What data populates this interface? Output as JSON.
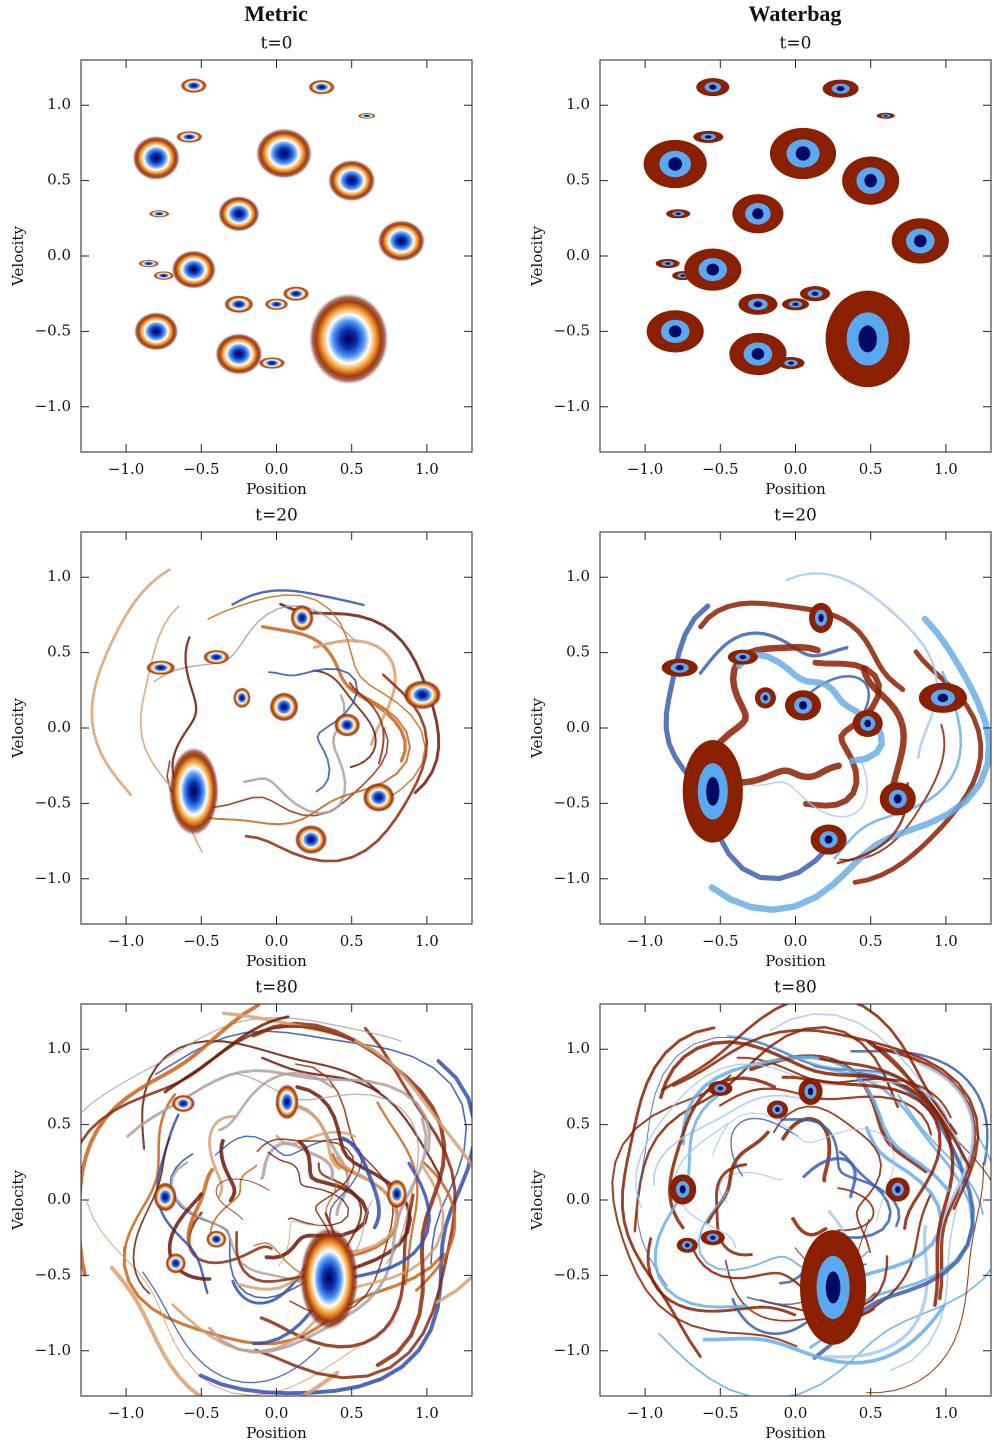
{
  "columns": [
    "Metric",
    "Waterbag"
  ],
  "chart_data": [
    {
      "type": "phase-space",
      "title": "t=0",
      "xlabel": "Position",
      "ylabel": "Velocity",
      "xlim": [
        -1.3,
        1.3
      ],
      "ylim": [
        -1.3,
        1.3
      ],
      "xticks": [
        {
          "value": -1,
          "label": "−1.0"
        },
        {
          "value": -0.5,
          "label": "−0.5"
        },
        {
          "value": 0,
          "label": "0.0"
        },
        0.5,
        {
          "value": 1,
          "label": "1.0"
        }
      ],
      "yticks": [
        {
          "value": -1,
          "label": "−1.0"
        },
        {
          "value": -0.5,
          "label": "−0.5"
        },
        {
          "value": 0,
          "label": "0.0"
        },
        0.5,
        {
          "value": 1,
          "label": "1.0"
        }
      ],
      "x": [
        -0.55,
        0.3,
        0.6,
        -0.58,
        -0.8,
        0.05,
        0.5,
        -0.25,
        -0.78,
        0.83,
        -0.85,
        -0.75,
        -0.55,
        -0.25,
        0.0,
        0.13,
        -0.8,
        -0.25,
        -0.03,
        0.48
      ],
      "values": [
        1.13,
        1.12,
        0.93,
        0.79,
        0.65,
        0.68,
        0.5,
        0.28,
        0.28,
        0.1,
        -0.05,
        -0.13,
        -0.09,
        -0.32,
        -0.32,
        -0.25,
        -0.5,
        -0.65,
        -0.71,
        -0.55
      ],
      "rx": [
        0.09,
        0.09,
        0.06,
        0.09,
        0.16,
        0.19,
        0.16,
        0.14,
        0.07,
        0.16,
        0.07,
        0.07,
        0.15,
        0.1,
        0.08,
        0.09,
        0.15,
        0.16,
        0.09,
        0.27
      ],
      "ry": [
        0.05,
        0.05,
        0.02,
        0.04,
        0.15,
        0.17,
        0.14,
        0.12,
        0.025,
        0.14,
        0.025,
        0.03,
        0.13,
        0.06,
        0.04,
        0.05,
        0.13,
        0.14,
        0.04,
        0.31
      ]
    },
    {
      "type": "phase-space",
      "title": "t=0",
      "xlabel": "Position",
      "ylabel": "Velocity",
      "xlim": [
        -1.3,
        1.3
      ],
      "ylim": [
        -1.3,
        1.3
      ],
      "xticks": [
        {
          "value": -1,
          "label": "−1.0"
        },
        {
          "value": -0.5,
          "label": "−0.5"
        },
        {
          "value": 0,
          "label": "0.0"
        },
        0.5,
        {
          "value": 1,
          "label": "1.0"
        }
      ],
      "yticks": [
        {
          "value": -1,
          "label": "−1.0"
        },
        {
          "value": -0.5,
          "label": "−0.5"
        },
        {
          "value": 0,
          "label": "0.0"
        },
        0.5,
        {
          "value": 1,
          "label": "1.0"
        }
      ],
      "x": [
        -0.55,
        0.3,
        0.6,
        -0.58,
        -0.8,
        0.05,
        0.5,
        -0.25,
        -0.78,
        0.83,
        -0.85,
        -0.75,
        -0.55,
        -0.25,
        0.0,
        0.13,
        -0.8,
        -0.25,
        -0.03,
        0.48
      ],
      "values": [
        1.12,
        1.11,
        0.93,
        0.79,
        0.61,
        0.68,
        0.5,
        0.28,
        0.28,
        0.1,
        -0.05,
        -0.13,
        -0.09,
        -0.32,
        -0.32,
        -0.25,
        -0.5,
        -0.65,
        -0.71,
        -0.55
      ],
      "rx": [
        0.11,
        0.12,
        0.06,
        0.1,
        0.21,
        0.22,
        0.19,
        0.17,
        0.08,
        0.19,
        0.08,
        0.07,
        0.19,
        0.13,
        0.09,
        0.1,
        0.19,
        0.19,
        0.09,
        0.28
      ],
      "ry": [
        0.06,
        0.06,
        0.02,
        0.04,
        0.16,
        0.17,
        0.16,
        0.13,
        0.03,
        0.15,
        0.03,
        0.03,
        0.14,
        0.07,
        0.04,
        0.05,
        0.14,
        0.14,
        0.04,
        0.32
      ]
    },
    {
      "type": "phase-space",
      "title": "t=20",
      "xlabel": "Position",
      "ylabel": "Velocity",
      "xlim": [
        -1.3,
        1.3
      ],
      "ylim": [
        -1.3,
        1.3
      ],
      "xticks": [
        {
          "value": -1,
          "label": "−1.0"
        },
        {
          "value": -0.5,
          "label": "−0.5"
        },
        {
          "value": 0,
          "label": "0.0"
        },
        0.5,
        {
          "value": 1,
          "label": "1.0"
        }
      ],
      "yticks": [
        {
          "value": -1,
          "label": "−1.0"
        },
        {
          "value": -0.5,
          "label": "−0.5"
        },
        {
          "value": 0,
          "label": "0.0"
        },
        0.5,
        {
          "value": 1,
          "label": "1.0"
        }
      ],
      "x": [
        -0.77,
        -0.4,
        0.17,
        -0.23,
        0.05,
        0.47,
        0.97,
        -0.55,
        0.68,
        0.23
      ],
      "values": [
        0.4,
        0.47,
        0.73,
        0.2,
        0.14,
        0.02,
        0.22,
        -0.42,
        -0.46,
        -0.74
      ],
      "rx": [
        0.1,
        0.09,
        0.08,
        0.06,
        0.1,
        0.09,
        0.13,
        0.17,
        0.11,
        0.11
      ],
      "ry": [
        0.05,
        0.05,
        0.09,
        0.07,
        0.1,
        0.08,
        0.1,
        0.3,
        0.1,
        0.1
      ]
    },
    {
      "type": "phase-space",
      "title": "t=20",
      "xlabel": "Position",
      "ylabel": "Velocity",
      "xlim": [
        -1.3,
        1.3
      ],
      "ylim": [
        -1.3,
        1.3
      ],
      "xticks": [
        {
          "value": -1,
          "label": "−1.0"
        },
        {
          "value": -0.5,
          "label": "−0.5"
        },
        {
          "value": 0,
          "label": "0.0"
        },
        0.5,
        {
          "value": 1,
          "label": "1.0"
        }
      ],
      "yticks": [
        {
          "value": -1,
          "label": "−1.0"
        },
        {
          "value": -0.5,
          "label": "−0.5"
        },
        {
          "value": 0,
          "label": "0.0"
        },
        0.5,
        {
          "value": 1,
          "label": "1.0"
        }
      ],
      "x": [
        -0.77,
        -0.35,
        0.17,
        -0.2,
        0.05,
        0.48,
        0.98,
        -0.55,
        0.68,
        0.22
      ],
      "values": [
        0.4,
        0.47,
        0.73,
        0.2,
        0.15,
        0.03,
        0.2,
        -0.42,
        -0.47,
        -0.74
      ],
      "rx": [
        0.12,
        0.1,
        0.08,
        0.07,
        0.12,
        0.1,
        0.16,
        0.2,
        0.12,
        0.12
      ],
      "ry": [
        0.06,
        0.05,
        0.1,
        0.07,
        0.1,
        0.09,
        0.1,
        0.34,
        0.11,
        0.1
      ]
    },
    {
      "type": "phase-space",
      "title": "t=80",
      "xlabel": "Position",
      "ylabel": "Velocity",
      "xlim": [
        -1.3,
        1.3
      ],
      "ylim": [
        -1.3,
        1.3
      ],
      "xticks": [
        {
          "value": -1,
          "label": "−1.0"
        },
        {
          "value": -0.5,
          "label": "−0.5"
        },
        {
          "value": 0,
          "label": "0.0"
        },
        0.5,
        {
          "value": 1,
          "label": "1.0"
        }
      ],
      "yticks": [
        {
          "value": -1,
          "label": "−1.0"
        },
        {
          "value": -0.5,
          "label": "−0.5"
        },
        {
          "value": 0,
          "label": "0.0"
        },
        0.5,
        {
          "value": 1,
          "label": "1.0"
        }
      ],
      "x": [
        -0.62,
        0.07,
        -0.74,
        0.8,
        -0.4,
        -0.67,
        0.35
      ],
      "values": [
        0.64,
        0.65,
        0.02,
        0.04,
        -0.26,
        -0.42,
        -0.52
      ],
      "rx": [
        0.08,
        0.08,
        0.08,
        0.07,
        0.07,
        0.07,
        0.2
      ],
      "ry": [
        0.06,
        0.12,
        0.1,
        0.1,
        0.06,
        0.07,
        0.35
      ]
    },
    {
      "type": "phase-space",
      "title": "t=80",
      "xlabel": "Position",
      "ylabel": "Velocity",
      "xlim": [
        -1.3,
        1.3
      ],
      "ylim": [
        -1.3,
        1.3
      ],
      "xticks": [
        {
          "value": -1,
          "label": "−1.0"
        },
        {
          "value": -0.5,
          "label": "−0.5"
        },
        {
          "value": 0,
          "label": "0.0"
        },
        0.5,
        {
          "value": 1,
          "label": "1.0"
        }
      ],
      "yticks": [
        {
          "value": -1,
          "label": "−1.0"
        },
        {
          "value": -0.5,
          "label": "−0.5"
        },
        {
          "value": 0,
          "label": "0.0"
        },
        0.5,
        {
          "value": 1,
          "label": "1.0"
        }
      ],
      "x": [
        -0.5,
        0.1,
        -0.12,
        -0.75,
        0.68,
        -0.55,
        -0.72,
        0.25
      ],
      "values": [
        0.74,
        0.72,
        0.6,
        0.07,
        0.07,
        -0.25,
        -0.3,
        -0.58
      ],
      "rx": [
        0.08,
        0.08,
        0.07,
        0.09,
        0.08,
        0.08,
        0.07,
        0.22
      ],
      "ry": [
        0.05,
        0.09,
        0.06,
        0.1,
        0.08,
        0.05,
        0.05,
        0.38
      ]
    }
  ]
}
